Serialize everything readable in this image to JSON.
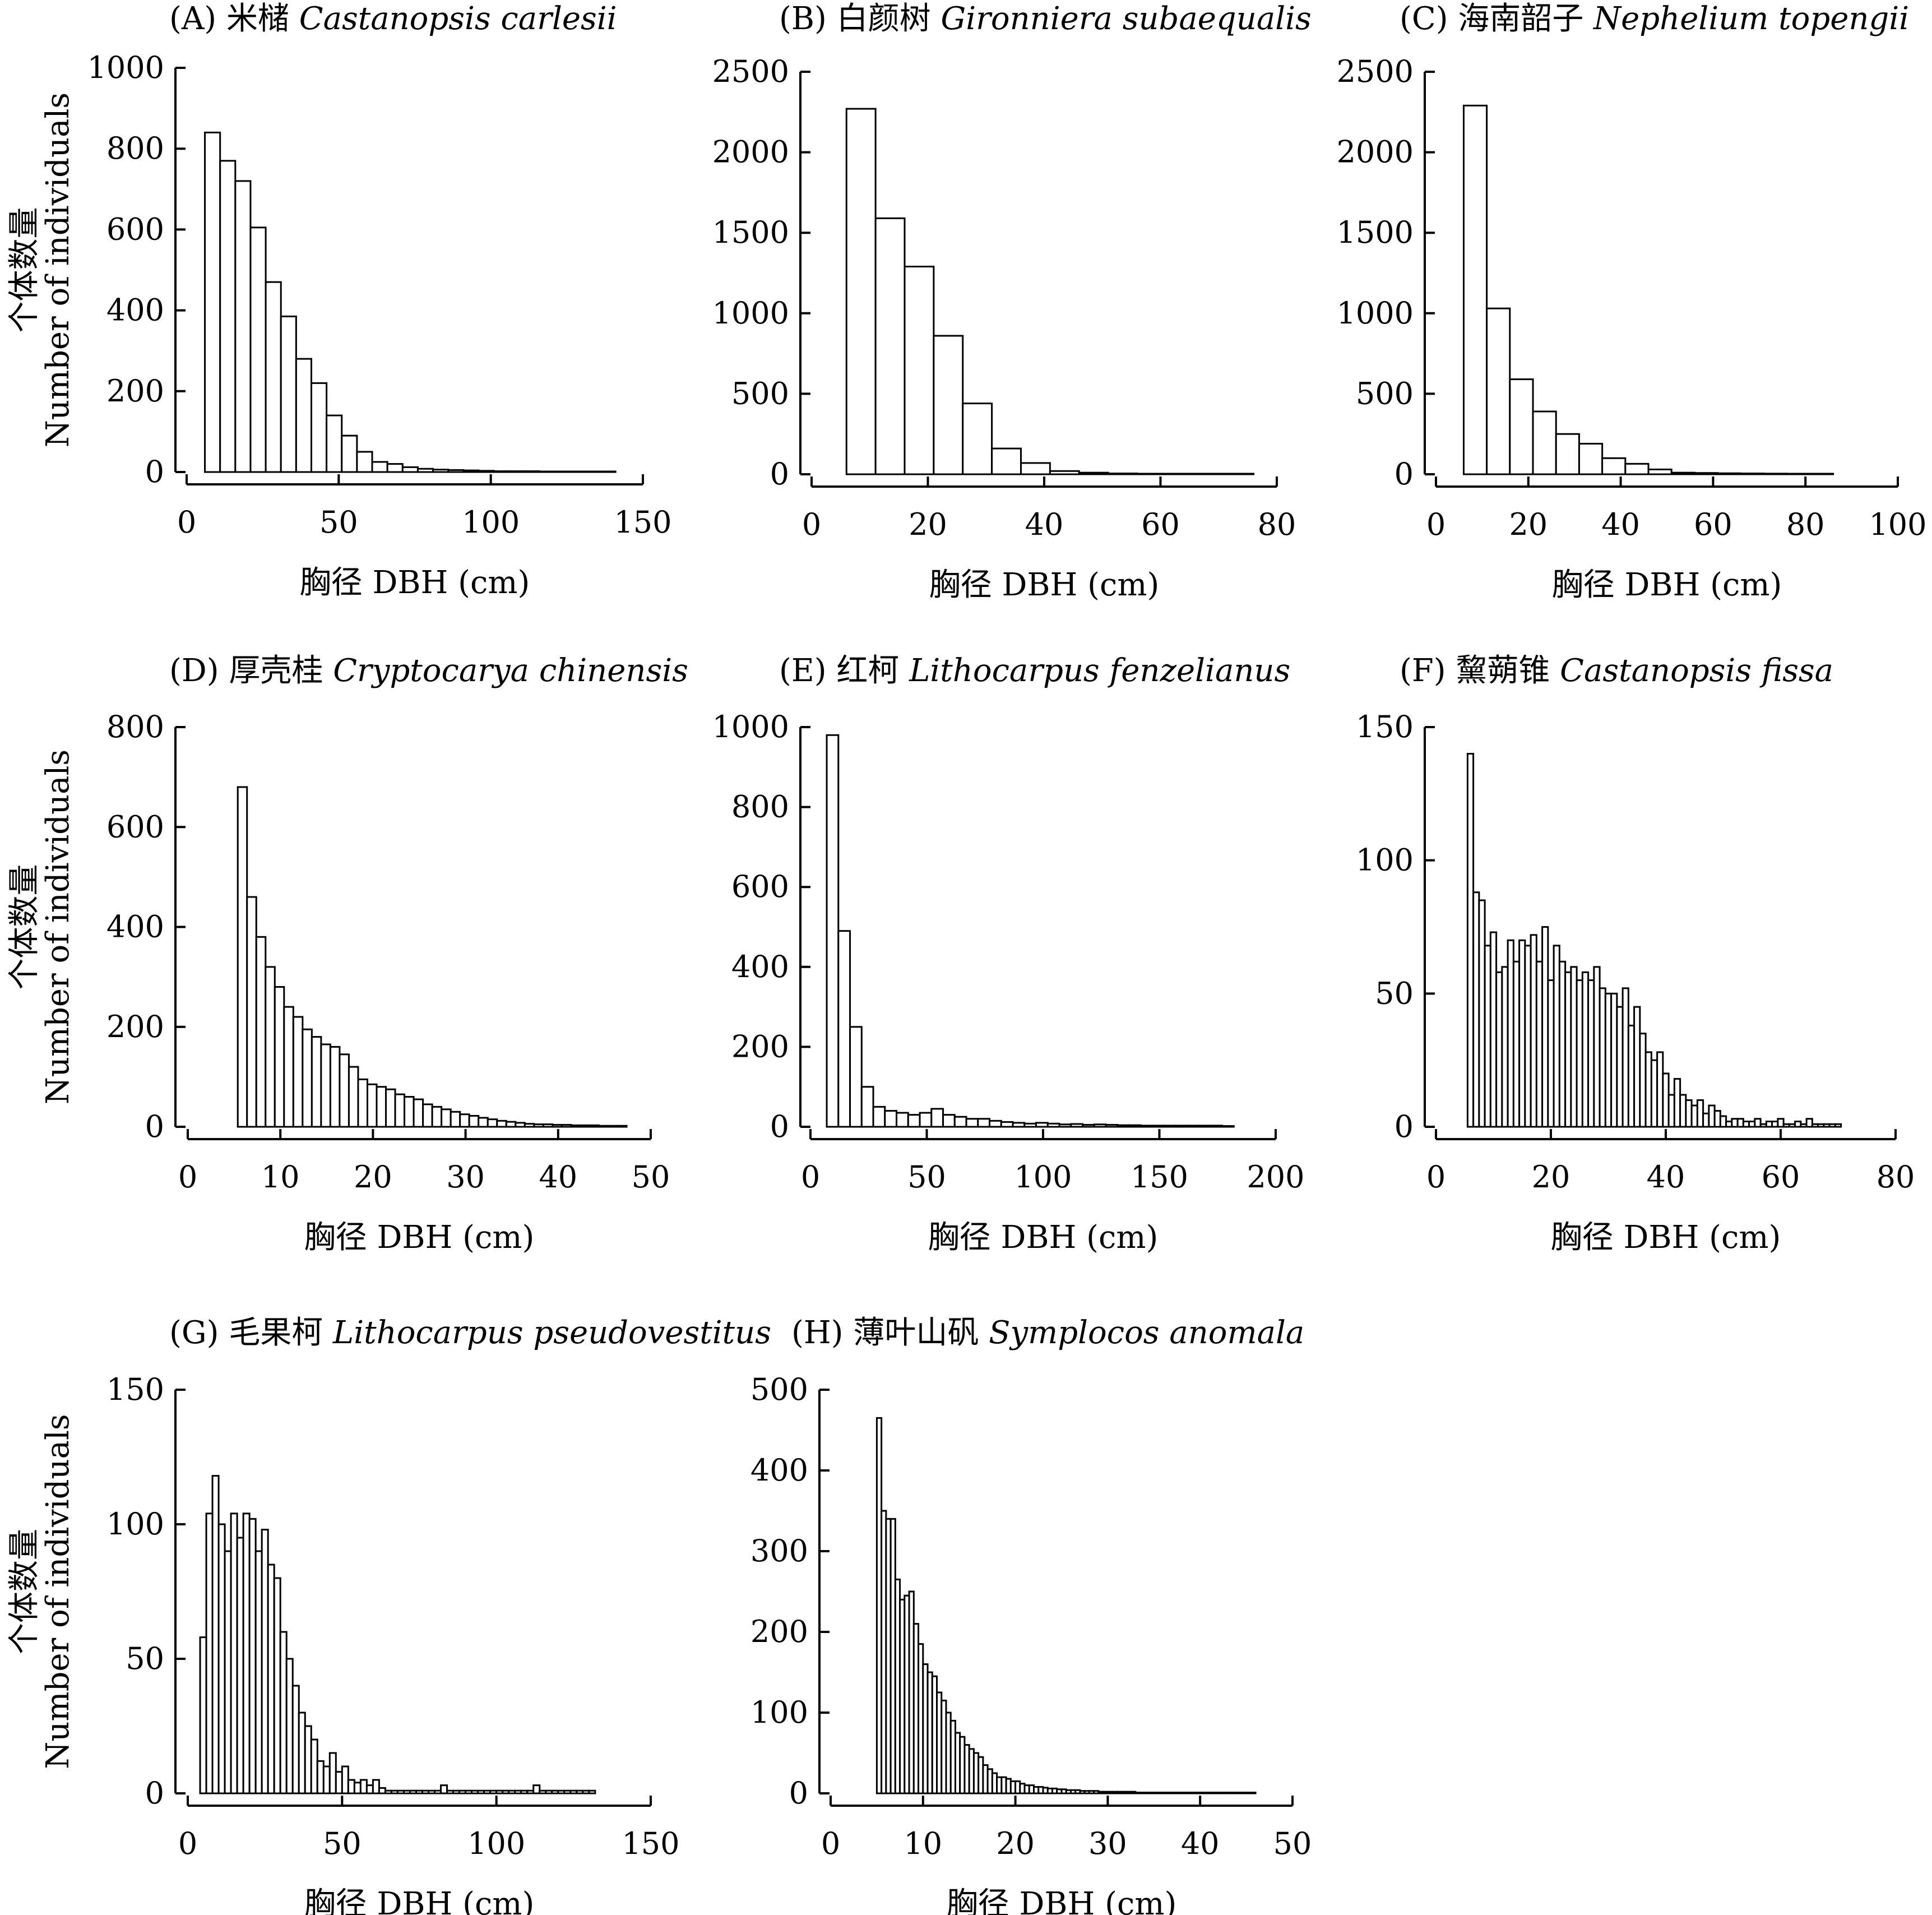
{
  "figure": {
    "panels_note": "8 panels of DBH histograms",
    "ylabel_cn": "个体数量",
    "ylabel_en": "Number of individuals",
    "xlabel": "胸径 DBH (cm)"
  },
  "chart_data": [
    {
      "type": "bar",
      "id": "A",
      "title_prefix": "(A) 米槠 ",
      "title_species": "Castanopsis carlesii",
      "xlabel": "胸径 DBH (cm)",
      "ylabel": "个体数量 Number of individuals",
      "xlim": [
        0,
        150
      ],
      "ylim": [
        0,
        1000
      ],
      "xticks": [
        0,
        50,
        100,
        150
      ],
      "yticks": [
        0,
        200,
        400,
        600,
        800,
        1000
      ],
      "bin_width": 5,
      "bin_start": 6,
      "values": [
        840,
        770,
        720,
        605,
        470,
        385,
        280,
        220,
        140,
        90,
        50,
        25,
        20,
        12,
        8,
        6,
        5,
        4,
        3,
        2,
        2,
        2,
        1,
        1,
        1,
        1,
        1
      ]
    },
    {
      "type": "bar",
      "id": "B",
      "title_prefix": "(B) 白颜树 ",
      "title_species": "Gironniera subaequalis",
      "xlabel": "胸径 DBH (cm)",
      "ylabel": "",
      "xlim": [
        0,
        80
      ],
      "ylim": [
        0,
        2500
      ],
      "xticks": [
        0,
        20,
        40,
        60,
        80
      ],
      "yticks": [
        0,
        500,
        1000,
        1500,
        2000,
        2500
      ],
      "bin_width": 5,
      "bin_start": 6,
      "values": [
        2270,
        1590,
        1290,
        860,
        440,
        160,
        70,
        20,
        10,
        5,
        3,
        3,
        3,
        3
      ]
    },
    {
      "type": "bar",
      "id": "C",
      "title_prefix": "(C) 海南韶子 ",
      "title_species": "Nephelium topengii",
      "xlabel": "胸径 DBH (cm)",
      "ylabel": "",
      "xlim": [
        0,
        100
      ],
      "ylim": [
        0,
        2500
      ],
      "xticks": [
        0,
        20,
        40,
        60,
        80,
        100
      ],
      "yticks": [
        0,
        500,
        1000,
        1500,
        2000,
        2500
      ],
      "bin_width": 5,
      "bin_start": 6,
      "values": [
        2290,
        1030,
        590,
        390,
        250,
        190,
        100,
        65,
        30,
        10,
        8,
        6,
        5,
        4,
        3,
        3
      ]
    },
    {
      "type": "bar",
      "id": "D",
      "title_prefix": "(D) 厚壳桂 ",
      "title_species": "Cryptocarya chinensis",
      "xlabel": "胸径 DBH (cm)",
      "ylabel": "个体数量 Number of individuals",
      "xlim": [
        0,
        50
      ],
      "ylim": [
        0,
        800
      ],
      "xticks": [
        0,
        10,
        20,
        30,
        40,
        50
      ],
      "yticks": [
        0,
        200,
        400,
        600,
        800
      ],
      "bin_width": 1,
      "bin_start": 5.4,
      "values": [
        680,
        460,
        380,
        320,
        280,
        240,
        220,
        195,
        180,
        165,
        160,
        145,
        120,
        95,
        85,
        80,
        75,
        65,
        60,
        55,
        45,
        40,
        35,
        30,
        25,
        22,
        18,
        15,
        12,
        10,
        8,
        6,
        5,
        5,
        4,
        4,
        3,
        3,
        3,
        2,
        2,
        2
      ]
    },
    {
      "type": "bar",
      "id": "E",
      "title_prefix": "(E) 红柯 ",
      "title_species": "Lithocarpus fenzelianus",
      "xlabel": "胸径 DBH (cm)",
      "ylabel": "",
      "xlim": [
        0,
        200
      ],
      "ylim": [
        0,
        1000
      ],
      "xticks": [
        0,
        50,
        100,
        150,
        200
      ],
      "yticks": [
        0,
        200,
        400,
        600,
        800,
        1000
      ],
      "bin_width": 5,
      "bin_start": 7,
      "values": [
        980,
        490,
        250,
        100,
        50,
        40,
        35,
        30,
        35,
        45,
        30,
        25,
        20,
        20,
        15,
        12,
        10,
        8,
        10,
        8,
        6,
        7,
        5,
        6,
        5,
        4,
        4,
        3,
        3,
        3,
        3,
        3,
        3,
        3,
        2
      ]
    },
    {
      "type": "bar",
      "id": "F",
      "title_prefix": "(F) 黧蒴锥 ",
      "title_species": "Castanopsis fissa",
      "xlabel": "胸径 DBH (cm)",
      "ylabel": "",
      "xlim": [
        0,
        80
      ],
      "ylim": [
        0,
        150
      ],
      "xticks": [
        0,
        20,
        40,
        60,
        80
      ],
      "yticks": [
        0,
        50,
        100,
        150
      ],
      "bin_width": 1,
      "bin_start": 5.5,
      "values": [
        140,
        88,
        85,
        68,
        73,
        58,
        60,
        70,
        62,
        70,
        68,
        72,
        62,
        75,
        55,
        68,
        62,
        58,
        60,
        55,
        58,
        55,
        60,
        52,
        50,
        50,
        45,
        52,
        38,
        45,
        35,
        28,
        25,
        28,
        20,
        12,
        18,
        12,
        10,
        8,
        10,
        5,
        8,
        6,
        4,
        2,
        3,
        3,
        2,
        2,
        3,
        1,
        2,
        2,
        3,
        1,
        1,
        2,
        1,
        3,
        1,
        1,
        1,
        1,
        1
      ]
    },
    {
      "type": "bar",
      "id": "G",
      "title_prefix": "(G) 毛果柯 ",
      "title_species": "Lithocarpus pseudovestitus",
      "xlabel": "胸径 DBH (cm)",
      "ylabel": "个体数量 Number of individuals",
      "xlim": [
        0,
        150
      ],
      "ylim": [
        0,
        150
      ],
      "xticks": [
        0,
        50,
        100,
        150
      ],
      "yticks": [
        0,
        50,
        100,
        150
      ],
      "bin_width": 2,
      "bin_start": 4,
      "values": [
        58,
        104,
        118,
        100,
        90,
        104,
        95,
        104,
        102,
        90,
        98,
        85,
        80,
        60,
        50,
        40,
        30,
        25,
        20,
        12,
        10,
        15,
        8,
        10,
        5,
        4,
        5,
        3,
        5,
        2,
        1,
        1,
        1,
        1,
        1,
        1,
        1,
        1,
        1,
        3,
        1,
        1,
        1,
        1,
        1,
        1,
        1,
        1,
        1,
        1,
        1,
        1,
        1,
        1,
        3,
        1,
        1,
        1,
        1,
        1,
        1,
        1,
        1,
        1
      ]
    },
    {
      "type": "bar",
      "id": "H",
      "title_prefix": "(H) 薄叶山矾 ",
      "title_species": "Symplocos anomala",
      "xlabel": "胸径 DBH (cm)",
      "ylabel": "",
      "xlim": [
        0,
        50
      ],
      "ylim": [
        0,
        500
      ],
      "xticks": [
        0,
        10,
        20,
        30,
        40,
        50
      ],
      "yticks": [
        0,
        100,
        200,
        300,
        400,
        500
      ],
      "bin_width": 0.5,
      "bin_start": 5,
      "values": [
        465,
        350,
        340,
        340,
        265,
        240,
        245,
        250,
        210,
        185,
        160,
        150,
        145,
        125,
        115,
        100,
        90,
        75,
        70,
        60,
        55,
        50,
        45,
        35,
        30,
        25,
        20,
        20,
        18,
        15,
        15,
        12,
        10,
        10,
        8,
        8,
        7,
        6,
        6,
        5,
        5,
        4,
        4,
        4,
        3,
        3,
        3,
        3,
        2,
        2,
        2,
        2,
        2,
        2,
        2,
        2,
        1,
        1,
        1,
        1,
        1,
        1,
        1,
        1,
        1,
        1,
        1,
        1,
        1,
        1,
        1,
        1,
        1,
        1,
        1,
        1,
        1,
        1,
        1,
        1,
        1,
        1
      ]
    }
  ]
}
